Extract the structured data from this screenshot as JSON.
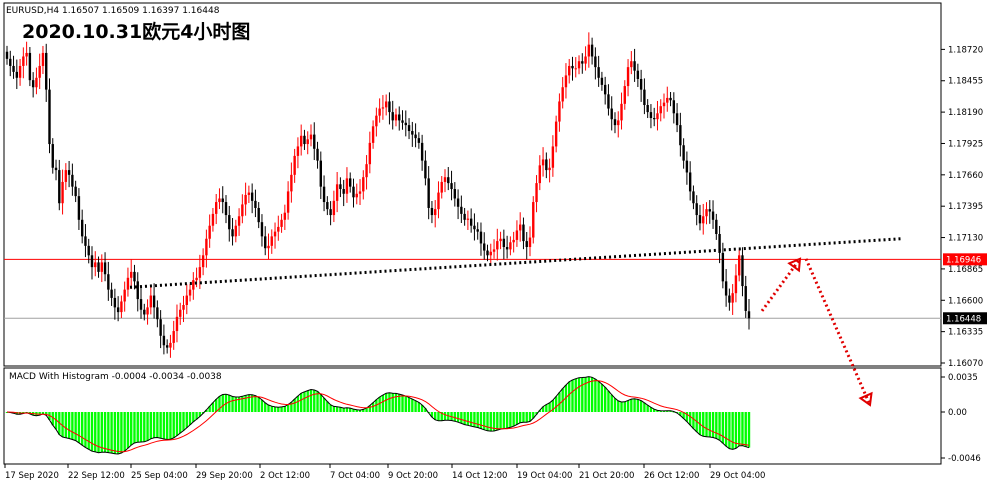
{
  "header": {
    "symbol_line": "EURUSD,H4  1.16507 1.16509 1.16397 1.16448",
    "title": "2020.10.31欧元4小时图",
    "macd_label": "MACD With Histogram -0.0004 -0.0034 -0.0038"
  },
  "colors": {
    "bull": "#ff0000",
    "bear": "#000000",
    "hline_red": "#ff0000",
    "hline_gray": "#a0a0a0",
    "trend_dotted": "#000000",
    "arrow_red": "#e00000",
    "histogram": "#00ff00",
    "macd_line": "#000000",
    "signal_line": "#ff0000",
    "price_tag_red": "#ff0000",
    "price_tag_black": "#000000"
  },
  "chart_data": [
    {
      "type": "candlestick",
      "name": "EURUSD,H4",
      "ylim": [
        1.1607,
        1.1885
      ],
      "y_ticks": [
        "1.18720",
        "1.18455",
        "1.18190",
        "1.17925",
        "1.17660",
        "1.17395",
        "1.17130",
        "1.16865",
        "1.16600",
        "1.16335",
        "1.16070"
      ],
      "x_ticks": [
        "17 Sep 2020",
        "22 Sep 12:00",
        "25 Sep 04:00",
        "29 Sep 20:00",
        "2 Oct 12:00",
        "7 Oct 04:00",
        "9 Oct 20:00",
        "14 Oct 12:00",
        "19 Oct 04:00",
        "21 Oct 20:00",
        "26 Oct 12:00",
        "29 Oct 04:00"
      ],
      "last_price": {
        "value": 1.16448,
        "label": "1.16448"
      },
      "marked_level": {
        "value": 1.16946,
        "label": "1.16946"
      },
      "ohlc_last": {
        "open": 1.16507,
        "high": 1.16509,
        "low": 1.16397,
        "close": 1.16448
      },
      "closes": [
        1.1864,
        1.1858,
        1.1853,
        1.1848,
        1.1858,
        1.1866,
        1.1869,
        1.1846,
        1.184,
        1.1848,
        1.1858,
        1.1869,
        1.1838,
        1.1792,
        1.1772,
        1.177,
        1.1742,
        1.176,
        1.177,
        1.1766,
        1.1756,
        1.1748,
        1.1728,
        1.1714,
        1.1706,
        1.1698,
        1.1688,
        1.1692,
        1.1684,
        1.1692,
        1.1682,
        1.1669,
        1.1662,
        1.1654,
        1.165,
        1.1659,
        1.1669,
        1.1679,
        1.1684,
        1.1676,
        1.1661,
        1.1652,
        1.1648,
        1.1654,
        1.1664,
        1.1654,
        1.1644,
        1.163,
        1.1622,
        1.162,
        1.1624,
        1.1634,
        1.1646,
        1.1652,
        1.1656,
        1.1664,
        1.1669,
        1.1677,
        1.1679,
        1.1688,
        1.1698,
        1.1712,
        1.1723,
        1.1733,
        1.1743,
        1.1746,
        1.1743,
        1.1732,
        1.172,
        1.1714,
        1.1723,
        1.1731,
        1.1741,
        1.1749,
        1.1751,
        1.1744,
        1.1738,
        1.1726,
        1.1714,
        1.1704,
        1.1706,
        1.1714,
        1.1718,
        1.1722,
        1.1728,
        1.1734,
        1.1752,
        1.1766,
        1.1782,
        1.179,
        1.1799,
        1.1792,
        1.1796,
        1.18,
        1.1788,
        1.1778,
        1.1756,
        1.1743,
        1.1737,
        1.1732,
        1.1744,
        1.1758,
        1.1754,
        1.175,
        1.1763,
        1.1756,
        1.1747,
        1.175,
        1.1752,
        1.1764,
        1.1775,
        1.1793,
        1.1807,
        1.1816,
        1.1822,
        1.1823,
        1.1828,
        1.1819,
        1.1812,
        1.1817,
        1.1812,
        1.181,
        1.1808,
        1.1803,
        1.18,
        1.1797,
        1.1793,
        1.1778,
        1.1763,
        1.1738,
        1.1732,
        1.1737,
        1.1751,
        1.176,
        1.1764,
        1.1759,
        1.1754,
        1.1746,
        1.1739,
        1.1733,
        1.1728,
        1.1729,
        1.1723,
        1.172,
        1.1718,
        1.1708,
        1.1702,
        1.1698,
        1.1701,
        1.1703,
        1.171,
        1.1712,
        1.1705,
        1.1703,
        1.1709,
        1.1711,
        1.1719,
        1.1724,
        1.171,
        1.1705,
        1.1713,
        1.1743,
        1.1759,
        1.1774,
        1.1779,
        1.177,
        1.1772,
        1.179,
        1.1811,
        1.1828,
        1.184,
        1.185,
        1.1858,
        1.1856,
        1.1856,
        1.1862,
        1.186,
        1.1866,
        1.1876,
        1.1866,
        1.1857,
        1.1848,
        1.1842,
        1.1834,
        1.1822,
        1.1813,
        1.1808,
        1.1812,
        1.1826,
        1.1841,
        1.1857,
        1.1862,
        1.1854,
        1.1847,
        1.1838,
        1.1825,
        1.1819,
        1.1814,
        1.1813,
        1.1818,
        1.1824,
        1.1827,
        1.1831,
        1.1829,
        1.1818,
        1.1808,
        1.1791,
        1.1778,
        1.1768,
        1.1752,
        1.1742,
        1.1732,
        1.1725,
        1.1731,
        1.1737,
        1.1735,
        1.1728,
        1.1716,
        1.17,
        1.1676,
        1.1664,
        1.1658,
        1.1666,
        1.1681,
        1.1698,
        1.1672,
        1.1651,
        1.1645
      ]
    },
    {
      "type": "line",
      "name": "MACD With Histogram",
      "ylim": [
        -0.0046,
        0.0035
      ],
      "y_ticks": [
        "0.0035",
        "0.00",
        "-0.0046"
      ],
      "values_last": {
        "macd": -0.0004,
        "signal": -0.0034,
        "histogram": -0.0038
      }
    }
  ],
  "annotations": {
    "trend_line": {
      "from_price": 1.1671,
      "to_price": 1.1712,
      "style": "dotted"
    },
    "arrows": [
      {
        "from_price": 1.1651,
        "to_price": 1.1695,
        "direction": "up",
        "color": "red",
        "style": "dotted"
      },
      {
        "from_price": 1.1695,
        "to_price": 1.16,
        "direction": "down",
        "color": "red",
        "style": "dotted"
      }
    ]
  }
}
